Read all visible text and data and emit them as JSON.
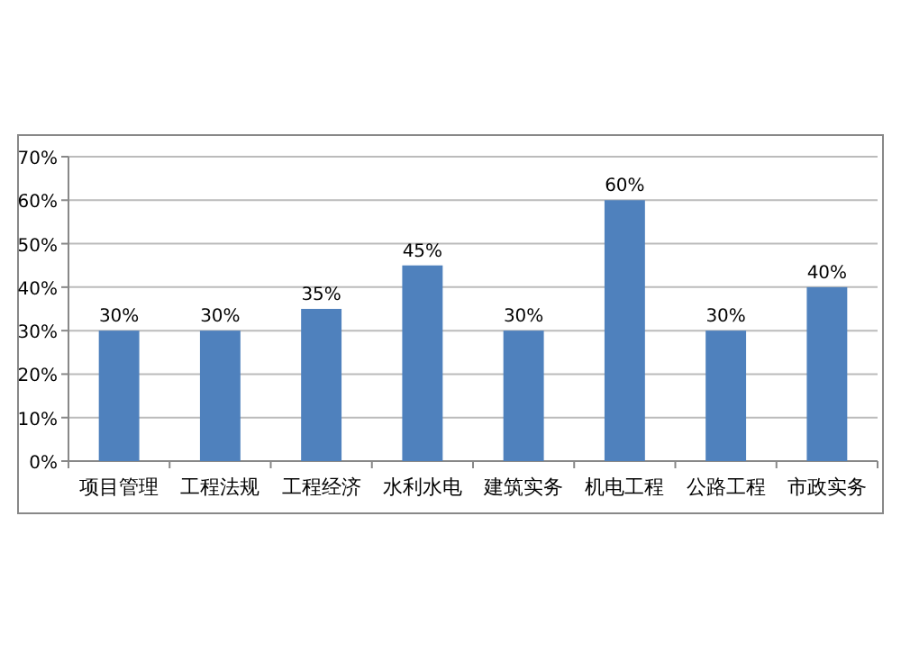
{
  "chart_data": {
    "type": "bar",
    "categories": [
      "项目管理",
      "工程法规",
      "工程经济",
      "水利水电",
      "建筑实务",
      "机电工程",
      "公路工程",
      "市政实务"
    ],
    "values": [
      30,
      30,
      35,
      45,
      30,
      60,
      30,
      40
    ],
    "color": "#4f81bd",
    "ylim": [
      0,
      70
    ],
    "yticks": [
      {
        "value": 0,
        "label": "0%"
      },
      {
        "value": 10,
        "label": "10%"
      },
      {
        "value": 20,
        "label": "20%"
      },
      {
        "value": 30,
        "label": "30%"
      },
      {
        "value": 40,
        "label": "40%"
      },
      {
        "value": 50,
        "label": "50%"
      },
      {
        "value": 60,
        "label": "60%"
      },
      {
        "value": 70,
        "label": "70%"
      }
    ],
    "grid": "y",
    "value_labels": [
      "30%",
      "30%",
      "35%",
      "45%",
      "30%",
      "60%",
      "30%",
      "40%"
    ]
  }
}
